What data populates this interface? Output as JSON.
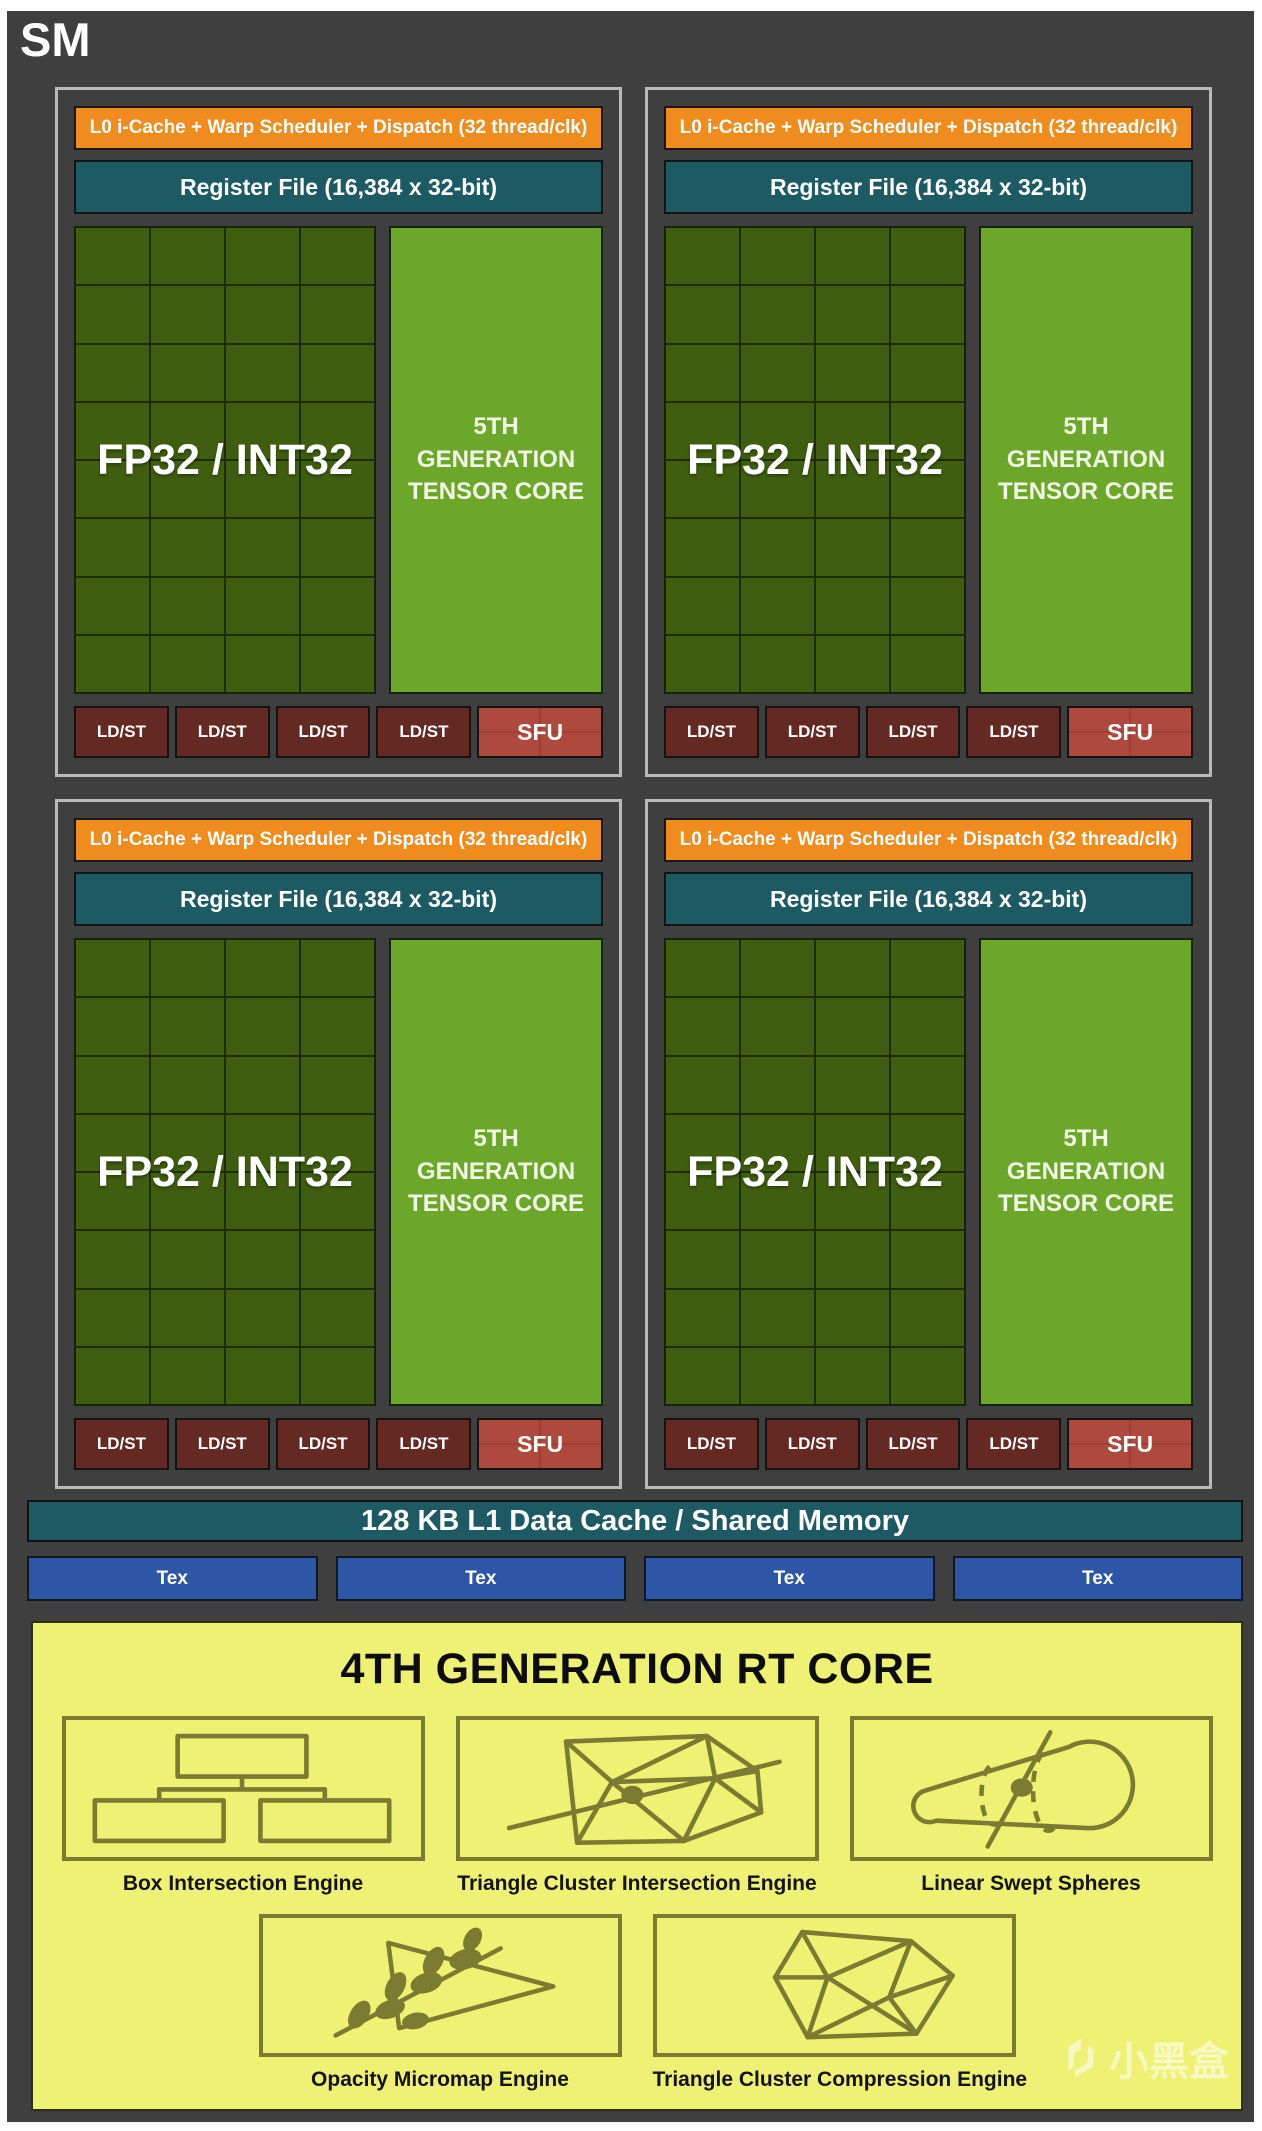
{
  "title": "SM",
  "colors": {
    "panel_background": "#3e3f3e",
    "partition_border": "#b9b9b9",
    "scheduler_orange": "#ef8c1d",
    "register_teal": "#1e5a64",
    "core_green_dark": "#405e10",
    "tensor_green": "#6ca72c",
    "ldst_maroon": "#652923",
    "sfu_red": "#ad4a3d",
    "tex_blue": "#2d56a7",
    "rt_core_yellow": "#eef173",
    "rt_olive": "#7b7b31"
  },
  "partitions_count": 4,
  "partition": {
    "l0_label": "L0 i-Cache + Warp Scheduler + Dispatch (32 thread/clk)",
    "register_file_label": "Register File (16,384 x 32-bit)",
    "core_grid_label": "FP32 / INT32",
    "grid": {
      "cols": 4,
      "rows": 8
    },
    "tensor_core_lines": [
      "5TH",
      "GENERATION",
      "TENSOR CORE"
    ],
    "ldst_label": "LD/ST",
    "ldst_count": 4,
    "sfu_label": "SFU"
  },
  "l1_label": "128 KB L1 Data Cache / Shared Memory",
  "tex_label": "Tex",
  "tex_count": 4,
  "rt_core": {
    "title": "4TH GENERATION RT CORE",
    "engines": [
      {
        "label": "Box Intersection Engine",
        "icon": "box-hierarchy-icon"
      },
      {
        "label": "Triangle Cluster Intersection Engine",
        "icon": "triangle-mesh-ray-icon"
      },
      {
        "label": "Linear Swept Spheres",
        "icon": "swept-spheres-icon"
      },
      {
        "label": "Opacity Micromap Engine",
        "icon": "leaf-branch-icon"
      },
      {
        "label": "Triangle Cluster Compression Engine",
        "icon": "compressed-mesh-icon"
      }
    ]
  },
  "watermark": {
    "text": "小黑盒",
    "icon": "xiaoheihe-logo-icon"
  }
}
